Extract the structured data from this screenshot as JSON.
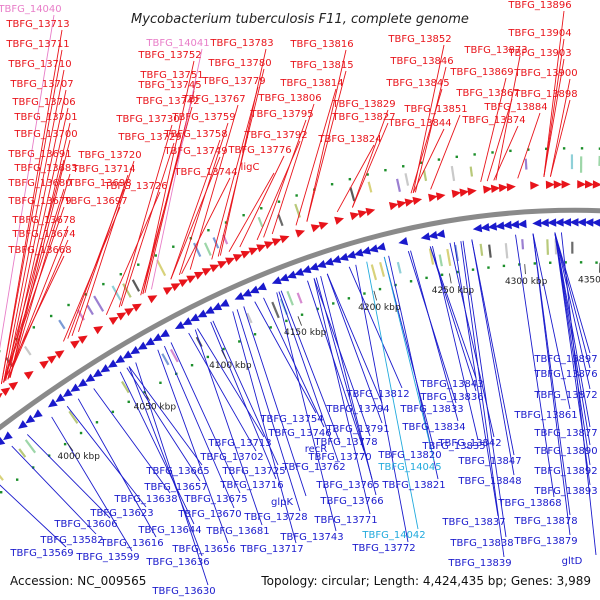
{
  "title": "Mycobacterium tuberculosis F11, complete genome",
  "footer": {
    "accession": "Accession: NC_009565",
    "summary": "Topology: circular; Length: 4,424,435 bp; Genes: 3,989"
  },
  "colors": {
    "forward": "#e8141b",
    "reverse": "#1a1acc",
    "rna_label": "#e87ec8",
    "rna_label_rev": "#22aadd",
    "backbone": "#8a8a8a"
  },
  "scale_marks": [
    "4000 kbp",
    "4050 kbp",
    "4100 kbp",
    "4150 kbp",
    "4200 kbp",
    "4250 kbp",
    "4300 kbp",
    "4350 kbp"
  ],
  "top_labels": [
    {
      "text": "TBFG_14040",
      "kind": "rna"
    },
    {
      "text": "TBFG_13713"
    },
    {
      "text": "TBFG_13711"
    },
    {
      "text": "TBFG_13710"
    },
    {
      "text": "TBFG_13707"
    },
    {
      "text": "TBFG_13706"
    },
    {
      "text": "TBFG_13701"
    },
    {
      "text": "TBFG_13700"
    },
    {
      "text": "TBFG_13691"
    },
    {
      "text": "TBFG_13683"
    },
    {
      "text": "TBFG_13680"
    },
    {
      "text": "TBFG_13679"
    },
    {
      "text": "TBFG_13678"
    },
    {
      "text": "TBFG_13674"
    },
    {
      "text": "TBFG_13668"
    },
    {
      "text": "TBFG_13714"
    },
    {
      "text": "TBFG_13698"
    },
    {
      "text": "TBFG_13697"
    },
    {
      "text": "TBFG_13720"
    },
    {
      "text": "TBFG_13726"
    },
    {
      "text": "TBFG_13729"
    },
    {
      "text": "TBFG_13730"
    },
    {
      "text": "TBFG_13742"
    },
    {
      "text": "TBFG_13745"
    },
    {
      "text": "TBFG_13751"
    },
    {
      "text": "TBFG_13752"
    },
    {
      "text": "TBFG_14041",
      "kind": "rna"
    },
    {
      "text": "TBFG_13759"
    },
    {
      "text": "TBFG_13758"
    },
    {
      "text": "TBFG_13749"
    },
    {
      "text": "TBFG_13744"
    },
    {
      "text": "TBFG_13767"
    },
    {
      "text": "TBFG_13779"
    },
    {
      "text": "TBFG_13780"
    },
    {
      "text": "TBFG_13783"
    },
    {
      "text": "ligC"
    },
    {
      "text": "TBFG_13776"
    },
    {
      "text": "TBFG_13792"
    },
    {
      "text": "TBFG_13795"
    },
    {
      "text": "TBFG_13806"
    },
    {
      "text": "TBFG_13814"
    },
    {
      "text": "TBFG_13815"
    },
    {
      "text": "TBFG_13816"
    },
    {
      "text": "TBFG_13824"
    },
    {
      "text": "TBFG_13827"
    },
    {
      "text": "TBFG_13829"
    },
    {
      "text": "TBFG_13852"
    },
    {
      "text": "TBFG_13846"
    },
    {
      "text": "TBFG_13845"
    },
    {
      "text": "TBFG_13851"
    },
    {
      "text": "TBFG_13844"
    },
    {
      "text": "TBFG_13873"
    },
    {
      "text": "TBFG_13869"
    },
    {
      "text": "TBFG_13867"
    },
    {
      "text": "TBFG_13884"
    },
    {
      "text": "TBFG_13874"
    },
    {
      "text": "TBFG_13896"
    },
    {
      "text": "TBFG_13904"
    },
    {
      "text": "TBFG_13903"
    },
    {
      "text": "TBFG_13900"
    },
    {
      "text": "TBFG_13898"
    }
  ],
  "bottom_labels": [
    {
      "text": "TBFG_13897"
    },
    {
      "text": "TBFG_13876"
    },
    {
      "text": "TBFG_13872"
    },
    {
      "text": "TBFG_13861"
    },
    {
      "text": "TBFG_13877"
    },
    {
      "text": "TBFG_13890"
    },
    {
      "text": "TBFG_13892"
    },
    {
      "text": "TBFG_13893"
    },
    {
      "text": "TBFG_13878"
    },
    {
      "text": "TBFG_13879"
    },
    {
      "text": "gltD"
    },
    {
      "text": "TBFG_13868"
    },
    {
      "text": "TBFG_13848"
    },
    {
      "text": "TBFG_13847"
    },
    {
      "text": "TBFG_13842"
    },
    {
      "text": "TBFG_13843"
    },
    {
      "text": "TBFG_13836"
    },
    {
      "text": "TBFG_13833"
    },
    {
      "text": "TBFG_13834"
    },
    {
      "text": "TBFG_13835"
    },
    {
      "text": "TBFG_13837"
    },
    {
      "text": "TBFG_13838"
    },
    {
      "text": "TBFG_13839"
    },
    {
      "text": "TBFG_13812"
    },
    {
      "text": "TBFG_13794"
    },
    {
      "text": "TBFG_13791"
    },
    {
      "text": "TBFG_13820"
    },
    {
      "text": "TBFG_13821"
    },
    {
      "text": "TBFG_14045",
      "kind": "rna"
    },
    {
      "text": "TBFG_13754"
    },
    {
      "text": "TBFG_13746"
    },
    {
      "text": "recR"
    },
    {
      "text": "TBFG_13778"
    },
    {
      "text": "TBFG_13770"
    },
    {
      "text": "TBFG_13762"
    },
    {
      "text": "TBFG_13765"
    },
    {
      "text": "TBFG_13766"
    },
    {
      "text": "TBFG_13771"
    },
    {
      "text": "TBFG_14042",
      "kind": "rna"
    },
    {
      "text": "TBFG_13772"
    },
    {
      "text": "TBFG_13743"
    },
    {
      "text": "TBFG_13717"
    },
    {
      "text": "TBFG_13728"
    },
    {
      "text": "glpK"
    },
    {
      "text": "TBFG_13716"
    },
    {
      "text": "TBFG_13725"
    },
    {
      "text": "TBFG_13713"
    },
    {
      "text": "TBFG_13702"
    },
    {
      "text": "TBFG_13665"
    },
    {
      "text": "TBFG_13657"
    },
    {
      "text": "TBFG_13675"
    },
    {
      "text": "TBFG_13638"
    },
    {
      "text": "TBFG_13670"
    },
    {
      "text": "TBFG_13681"
    },
    {
      "text": "TBFG_13623"
    },
    {
      "text": "TBFG_13644"
    },
    {
      "text": "TBFG_13606"
    },
    {
      "text": "TBFG_13616"
    },
    {
      "text": "TBFG_13656"
    },
    {
      "text": "TBFG_13582"
    },
    {
      "text": "TBFG_13599"
    },
    {
      "text": "TBFG_13636"
    },
    {
      "text": "TBFG_13569"
    },
    {
      "text": "TBFG_13630"
    }
  ]
}
